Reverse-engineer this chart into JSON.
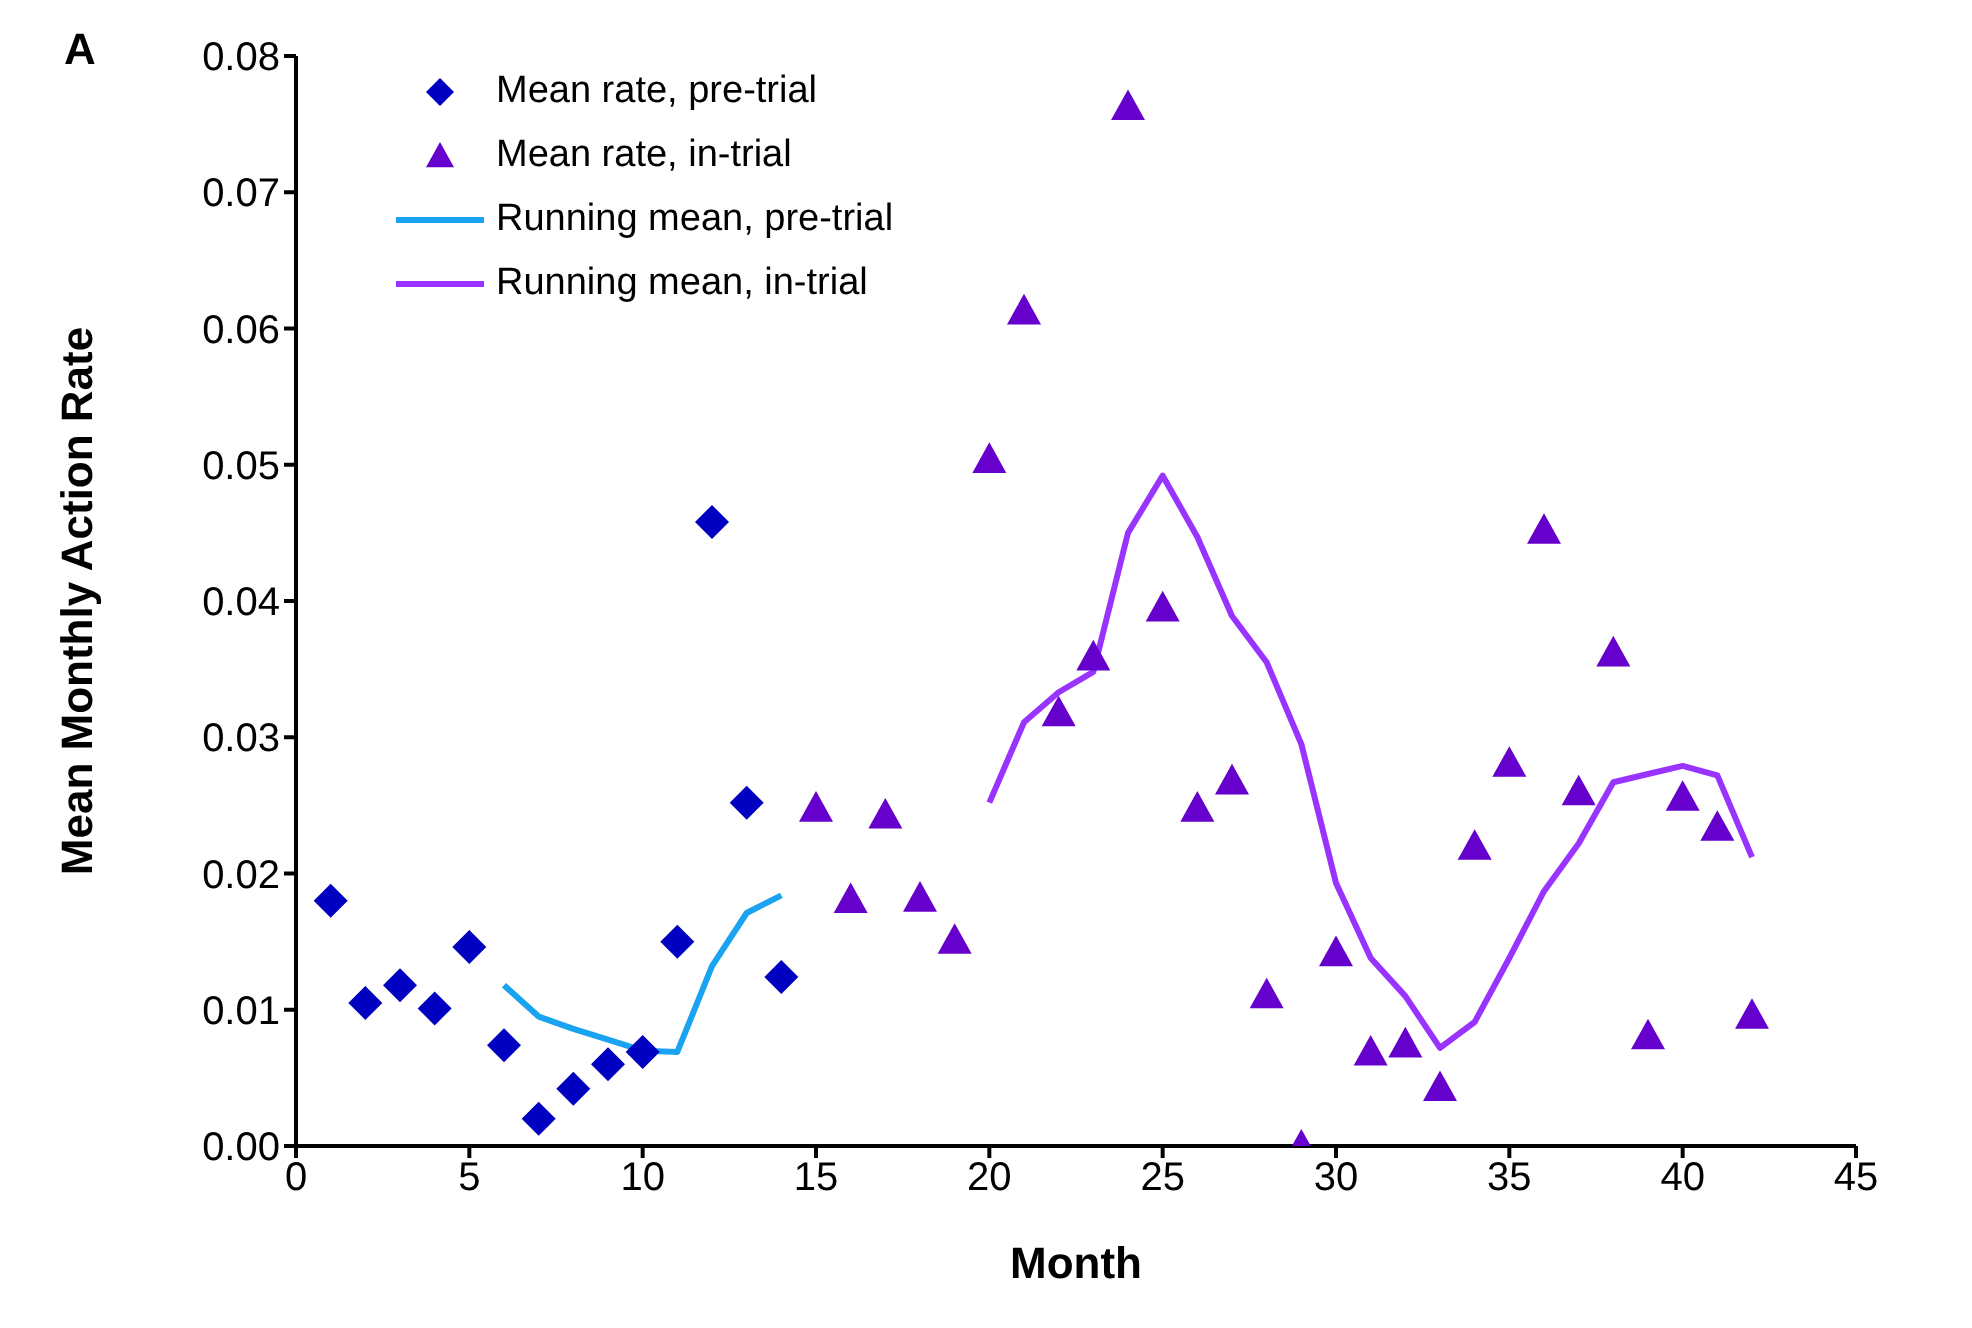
{
  "chart_data": {
    "type": "scatter",
    "xlabel": "Month",
    "ylabel": "Mean Monthly Action Rate",
    "annotations": [
      "A"
    ],
    "xlim": [
      0,
      45
    ],
    "xticks": [
      0,
      5,
      10,
      15,
      20,
      25,
      30,
      35,
      40,
      45
    ],
    "ylim": [
      0,
      0.08
    ],
    "yticks": [
      {
        "value": 0,
        "label": "0.00"
      },
      {
        "value": 0.01,
        "label": "0.01"
      },
      {
        "value": 0.02,
        "label": "0.02"
      },
      {
        "value": 0.03,
        "label": "0.03"
      },
      {
        "value": 0.04,
        "label": "0.04"
      },
      {
        "value": 0.05,
        "label": "0.05"
      },
      {
        "value": 0.06,
        "label": "0.06"
      },
      {
        "value": 0.07,
        "label": "0.07"
      },
      {
        "value": 0.08,
        "label": "0.08"
      }
    ],
    "grid": false,
    "legend": "top left",
    "series": [
      {
        "name": "Mean rate, pre-trial",
        "marker": "diamond",
        "color": "#0000c0",
        "x": [
          1,
          2,
          3,
          4,
          5,
          6,
          7,
          8,
          9,
          10,
          11,
          12,
          13,
          14
        ],
        "values": [
          0.018,
          0.0105,
          0.0118,
          0.0101,
          0.0146,
          0.0074,
          0.002,
          0.0042,
          0.006,
          0.0069,
          0.015,
          0.0458,
          0.0252,
          0.0124
        ]
      },
      {
        "name": "Mean rate, in-trial",
        "marker": "triangle",
        "color": "#6600cc",
        "x": [
          15,
          16,
          17,
          18,
          19,
          20,
          21,
          22,
          23,
          24,
          25,
          26,
          27,
          28,
          29,
          30,
          31,
          32,
          33,
          34,
          35,
          36,
          37,
          38,
          39,
          40,
          41,
          42
        ],
        "values": [
          0.0248,
          0.0181,
          0.0243,
          0.0182,
          0.0151,
          0.0504,
          0.0613,
          0.0318,
          0.0359,
          0.0763,
          0.0395,
          0.0248,
          0.0268,
          0.0111,
          0.0,
          0.0142,
          0.0069,
          0.0075,
          0.0043,
          0.022,
          0.0281,
          0.0452,
          0.026,
          0.0362,
          0.0081,
          0.0256,
          0.0234,
          0.0096
        ]
      },
      {
        "name": "Running mean, pre-trial",
        "type": "line",
        "marker": "none",
        "color": "#1aa3f0",
        "x": [
          6,
          7,
          8,
          9,
          10,
          11,
          12,
          13,
          14
        ],
        "values": [
          0.0118,
          0.0095,
          0.0086,
          0.0078,
          0.007,
          0.0069,
          0.0132,
          0.0171,
          0.0184
        ]
      },
      {
        "name": "Running mean, in-trial",
        "type": "line",
        "marker": "none",
        "color": "#9933ff",
        "x": [
          20,
          21,
          22,
          23,
          24,
          25,
          26,
          27,
          28,
          29,
          30,
          31,
          32,
          33,
          34,
          35,
          36,
          37,
          38,
          39,
          40,
          41,
          42
        ],
        "values": [
          0.0252,
          0.0311,
          0.0333,
          0.0348,
          0.045,
          0.0492,
          0.0447,
          0.0389,
          0.0355,
          0.0295,
          0.0193,
          0.0138,
          0.011,
          0.0072,
          0.0091,
          0.0138,
          0.0187,
          0.0222,
          0.0267,
          0.0273,
          0.0279,
          0.0272,
          0.0212
        ]
      }
    ]
  }
}
